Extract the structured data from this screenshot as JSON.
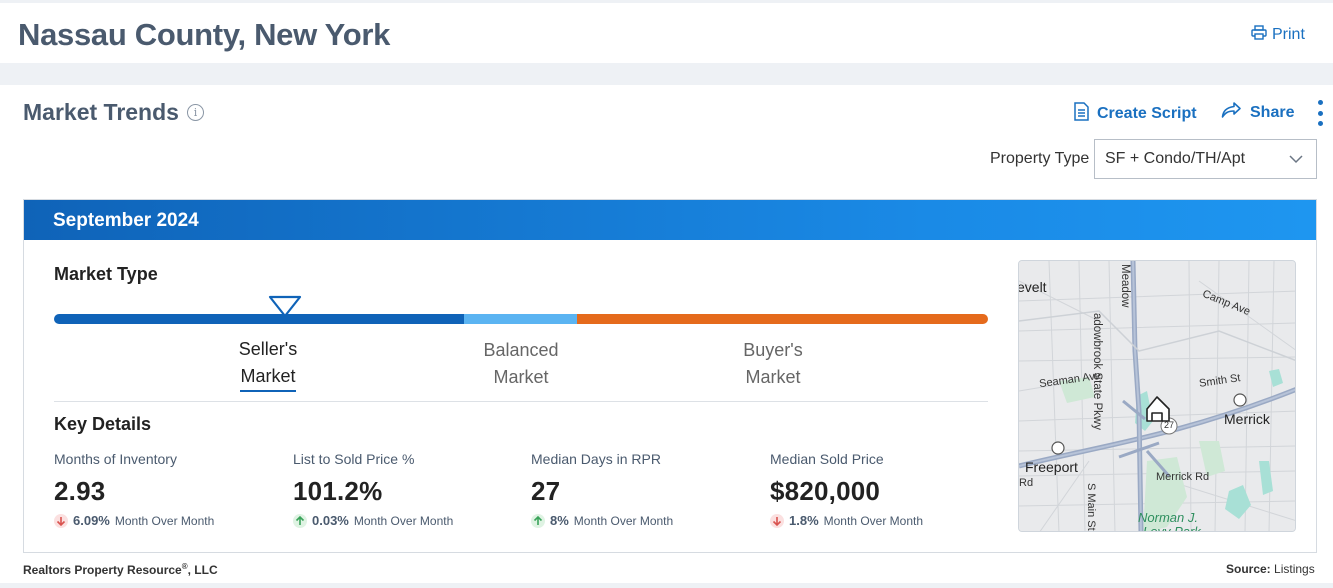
{
  "header": {
    "title": "Nassau County, New York",
    "print_label": "Print"
  },
  "section": {
    "title": "Market Trends",
    "create_script_label": "Create Script",
    "share_label": "Share"
  },
  "property_type": {
    "label": "Property Type",
    "selected": "SF + Condo/TH/Apt"
  },
  "panel": {
    "date": "September 2024"
  },
  "market_type": {
    "label": "Market Type",
    "types": [
      {
        "line1": "Seller's",
        "line2": "Market"
      },
      {
        "line1": "Balanced",
        "line2": "Market"
      },
      {
        "line1": "Buyer's",
        "line2": "Market"
      }
    ],
    "selected": "Seller's Market"
  },
  "key_details": {
    "label": "Key Details",
    "stats": [
      {
        "name": "Months of Inventory",
        "value": "2.93",
        "change": "6.09%",
        "direction": "down",
        "period": "Month Over Month"
      },
      {
        "name": "List to Sold Price %",
        "value": "101.2%",
        "change": "0.03%",
        "direction": "up",
        "period": "Month Over Month"
      },
      {
        "name": "Median Days in RPR",
        "value": "27",
        "change": "8%",
        "direction": "up",
        "period": "Month Over Month"
      },
      {
        "name": "Median Sold Price",
        "value": "$820,000",
        "change": "1.8%",
        "direction": "down",
        "period": "Month Over Month"
      }
    ]
  },
  "map": {
    "labels": {
      "evelt": "evelt",
      "meadowbrook": "adowbrook State Pkwy",
      "meadow_top": "Meadow",
      "camp_ave": "Camp Ave",
      "seaman_ave": "Seaman Ave",
      "smith_st": "Smith St",
      "merrick": "Merrick",
      "route27": "27",
      "freeport": "Freeport",
      "merrick_rd": "Merrick Rd",
      "rd": "Rd",
      "s_main_st": "S Main St",
      "park1": "Norman J.",
      "park2": "Levy Park"
    }
  },
  "footer": {
    "company": "Realtors Property Resource",
    "reg": "®",
    "suffix": ", LLC",
    "source_label": "Source:",
    "source_value": "Listings"
  },
  "colors": {
    "accent": "#1a70c0",
    "seller": "#0f63b8",
    "balanced": "#5bb4f2",
    "buyer": "#e56a1c",
    "down": "#d9534f",
    "up": "#3aa35a"
  }
}
